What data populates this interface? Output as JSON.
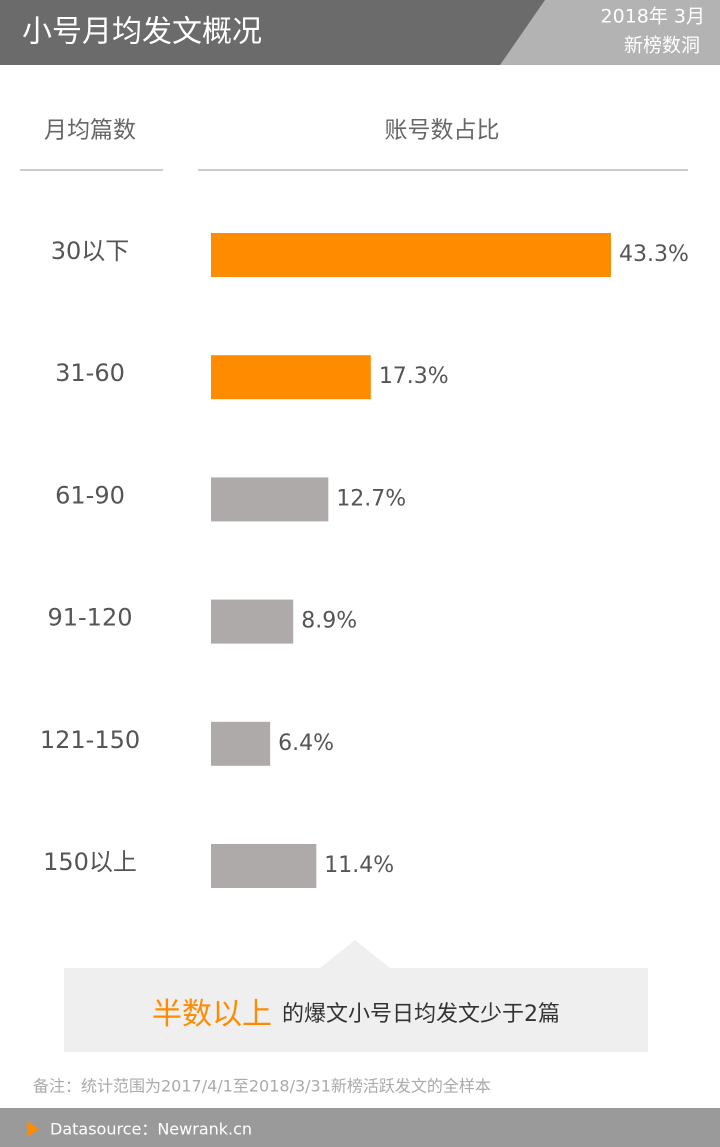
{
  "header": {
    "title": "小号月均发文概况",
    "date": "2018年 3月",
    "brand": "新榜数洞"
  },
  "chart_data": {
    "type": "bar",
    "category_header": "月均篇数",
    "value_header": "账号数占比",
    "categories": [
      "30以下",
      "31-60",
      "61-90",
      "91-120",
      "121-150",
      "150以上"
    ],
    "values": [
      43.3,
      17.3,
      12.7,
      8.9,
      6.4,
      11.4
    ],
    "value_labels": [
      "43.3%",
      "17.3%",
      "12.7%",
      "8.9%",
      "6.4%",
      "11.4%"
    ],
    "colors": [
      "#ff8c00",
      "#ff8c00",
      "#aeaaaa",
      "#aeaaaa",
      "#aeaaaa",
      "#aeaaaa"
    ]
  },
  "callout": {
    "highlight": "半数以上",
    "text": "的爆文小号日均发文少于2篇"
  },
  "note": "备注：统计范围为2017/4/1至2018/3/31新榜活跃发文的全样本",
  "footer": "Datasource：Newrank.cn"
}
